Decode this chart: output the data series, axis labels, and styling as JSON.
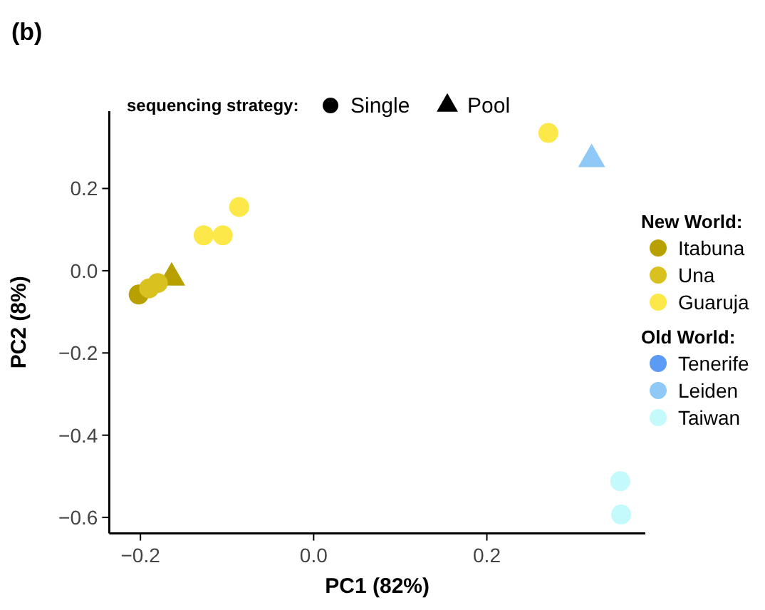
{
  "chart_data": {
    "type": "scatter",
    "title": "(b)",
    "xlabel": "PC1 (82%)",
    "ylabel": "PC2 (8%)",
    "xlim": [
      -0.236,
      0.383
    ],
    "ylim": [
      -0.639,
      0.388
    ],
    "xticks": [
      {
        "value": -0.2,
        "label": "−0.2"
      },
      {
        "value": 0,
        "label": "0.0"
      },
      {
        "value": 0.2,
        "label": "0.2"
      }
    ],
    "yticks": [
      {
        "value": -0.6,
        "label": "−0.6"
      },
      {
        "value": -0.4,
        "label": "−0.4"
      },
      {
        "value": -0.2,
        "label": "−0.2"
      },
      {
        "value": 0,
        "label": "0.0"
      },
      {
        "value": 0.2,
        "label": "0.2"
      }
    ],
    "grid": false,
    "legend": "right",
    "legend_title": "sequencing strategy:",
    "annotations": [
      "Single",
      "Pool",
      "New World:",
      "Old World:"
    ],
    "series": [
      {
        "name": "Itabuna",
        "color": "#b8a000",
        "marker": "circle",
        "x": [
          -0.202
        ],
        "values": [
          -0.058
        ]
      },
      {
        "color": "#b8a000",
        "marker": "triangle",
        "x": [
          -0.164
        ],
        "values": [
          -0.017
        ]
      },
      {
        "name": "Una",
        "color": "#d9c21f",
        "marker": "circle",
        "x": [
          -0.19,
          -0.18
        ],
        "values": [
          -0.043,
          -0.03
        ]
      },
      {
        "name": "Guaruja",
        "color": "#fde84a",
        "marker": "circle",
        "x": [
          0.271,
          -0.086,
          -0.127,
          -0.105
        ],
        "values": [
          0.335,
          0.155,
          0.086,
          0.086
        ]
      },
      {
        "name": "Tenerife",
        "color": "#5b9bf5"
      },
      {
        "name": "Leiden",
        "color": "#90c8f8",
        "marker": "triangle",
        "x": [
          0.321
        ],
        "values": [
          0.271
        ]
      },
      {
        "name": "Taiwan",
        "color": "#c4fafb",
        "marker": "circle",
        "x": [
          0.354,
          0.355
        ],
        "values": [
          -0.512,
          -0.593
        ]
      }
    ]
  }
}
